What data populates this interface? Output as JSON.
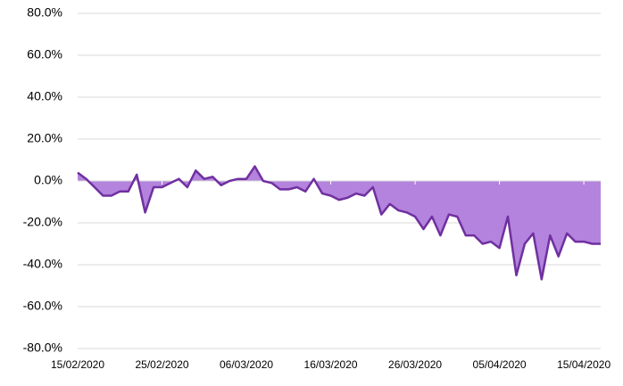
{
  "chart_data": {
    "type": "area",
    "categories": [
      "15/02/2020",
      null,
      null,
      null,
      null,
      null,
      null,
      null,
      null,
      null,
      "25/02/2020",
      null,
      null,
      null,
      null,
      null,
      null,
      null,
      null,
      null,
      "06/03/2020",
      null,
      null,
      null,
      null,
      null,
      null,
      null,
      null,
      null,
      "16/03/2020",
      null,
      null,
      null,
      null,
      null,
      null,
      null,
      null,
      null,
      "26/03/2020",
      null,
      null,
      null,
      null,
      null,
      null,
      null,
      null,
      null,
      "05/04/2020",
      null,
      null,
      null,
      null,
      null,
      null,
      null,
      null,
      null,
      "15/04/2020",
      null,
      null
    ],
    "values": [
      4,
      1,
      -3,
      -7,
      -7,
      -5,
      -5,
      3,
      -15,
      -3,
      -3,
      -1,
      1,
      -3,
      5,
      1,
      2,
      -2,
      0,
      1,
      1,
      7,
      0,
      -1,
      -4,
      -4,
      -3,
      -5,
      1,
      -6,
      -7,
      -9,
      -8,
      -6,
      -7,
      -3,
      -16,
      -11,
      -14,
      -15,
      -17,
      -23,
      -17,
      -26,
      -16,
      -17,
      -26,
      -26,
      -30,
      -29,
      -32,
      -17,
      -45,
      -30,
      -25,
      -47,
      -26,
      -36,
      -25,
      -29,
      -29,
      -30,
      -30
    ],
    "color": "#7030a0",
    "fill": "#b383dd",
    "ylim": [
      -80,
      80
    ],
    "yticks": [
      {
        "value": -80,
        "label": "-80.0%"
      },
      {
        "value": -60,
        "label": "-60.0%"
      },
      {
        "value": -40,
        "label": "-40.0%"
      },
      {
        "value": -20,
        "label": "-20.0%"
      },
      {
        "value": 0,
        "label": "0.0%"
      },
      {
        "value": 20,
        "label": "20.0%"
      },
      {
        "value": 40,
        "label": "40.0%"
      },
      {
        "value": 60,
        "label": "60.0%"
      },
      {
        "value": 80,
        "label": "80.0%"
      }
    ],
    "grid": true
  }
}
